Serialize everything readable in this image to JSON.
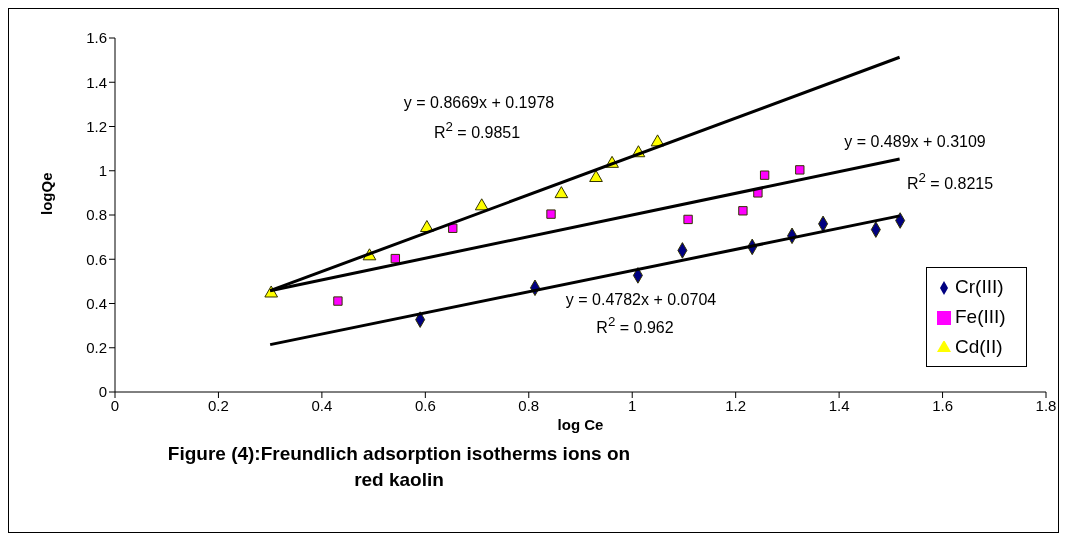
{
  "chart_data": {
    "type": "scatter",
    "title": "Figure (4):Freundlich adsorption isotherms ions on\nred kaolin",
    "xlabel": "log Ce",
    "ylabel": "logQe",
    "xlim": [
      0,
      1.8
    ],
    "xticks": [
      0,
      0.2,
      0.4,
      0.6,
      0.8,
      1,
      1.2,
      1.4,
      1.6,
      1.8
    ],
    "ylim": [
      0,
      1.6
    ],
    "yticks": [
      0,
      0.2,
      0.4,
      0.6,
      0.8,
      1,
      1.2,
      1.4,
      1.6
    ],
    "grid": false,
    "legend": "bottom right",
    "series": [
      {
        "name": "Cr(III)",
        "color": "#000080",
        "marker": "diamond",
        "x": [
          0.59,
          0.812,
          1.011,
          1.097,
          1.232,
          1.309,
          1.369,
          1.471,
          1.518
        ],
        "values": [
          0.327,
          0.471,
          0.527,
          0.64,
          0.656,
          0.706,
          0.76,
          0.734,
          0.775
        ]
      },
      {
        "name": "Fe(III)",
        "color": "#ff00ff",
        "marker": "square",
        "x": [
          0.431,
          0.542,
          0.653,
          0.843,
          1.108,
          1.214,
          1.243,
          1.256,
          1.324
        ],
        "values": [
          0.411,
          0.603,
          0.74,
          0.804,
          0.78,
          0.819,
          0.9,
          0.98,
          1.004
        ]
      },
      {
        "name": "Cd(II)",
        "color": "#ffff00",
        "marker": "triangle",
        "x": [
          0.302,
          0.492,
          0.603,
          0.709,
          0.863,
          0.93,
          0.961,
          1.012,
          1.049
        ],
        "values": [
          0.446,
          0.614,
          0.742,
          0.84,
          0.895,
          0.968,
          1.032,
          1.08,
          1.129
        ]
      },
      {
        "type": "line",
        "color": "#000000",
        "x": [
          0.3,
          1.517
        ],
        "values": [
          0.458,
          1.513
        ]
      },
      {
        "type": "line",
        "color": "#000000",
        "x": [
          0.3,
          1.517
        ],
        "values": [
          0.458,
          1.053
        ]
      },
      {
        "type": "line",
        "color": "#000000",
        "x": [
          0.3,
          1.517
        ],
        "values": [
          0.214,
          0.796
        ]
      }
    ],
    "annotations": [
      "y = 0.8669x + 0.1978",
      "R$^{2}$ = 0.9851",
      "y = 0.489x + 0.3109",
      "R$^{2}$ = 0.8215",
      "y = 0.4782x + 0.0704",
      "R$^{2}$ = 0.962"
    ]
  }
}
